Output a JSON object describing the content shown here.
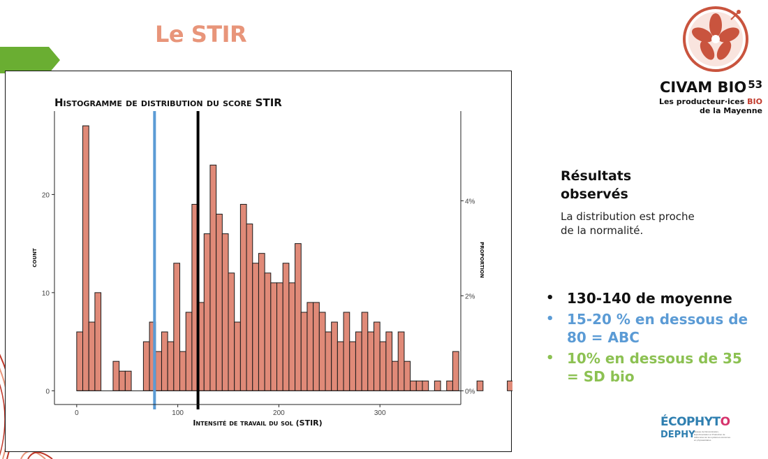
{
  "slide": {
    "title": "Le STIR",
    "colors": {
      "title": "#e8957a",
      "accent_green": "#6aae32",
      "accent_blue": "#5b9bd5",
      "accent_light_green": "#8cc152"
    }
  },
  "logo": {
    "name": "CIVAM BIO",
    "number": "53",
    "tagline_part1": "Les producteur·ices",
    "tagline_bio": "BIO",
    "tagline_part2": "de la Mayenne",
    "icon": "flower-icon"
  },
  "results": {
    "heading": "Résultats observés",
    "text": "La distribution est proche de la normalité.",
    "bullets": [
      {
        "text": "130-140 de moyenne",
        "color": "#111111"
      },
      {
        "text": "15-20 % en dessous de 80 = ABC",
        "color": "#5b9bd5"
      },
      {
        "text": "10% en dessous de 35 = SD bio",
        "color": "#8cc152"
      }
    ]
  },
  "partner": {
    "name": "ÉCOPHYT",
    "name_last": "O",
    "sub": "DEPHY",
    "desc": "Réseau de Démonstration, Expérimentation et Production de références sur les systèmes économes en phytosanitaires"
  },
  "chart_data": {
    "type": "bar",
    "title": "Histogramme de distribution du score STIR",
    "xlabel": "Intensité de travail du sol (STIR)",
    "ylabel": "count",
    "y2label": "proportion",
    "x_bins_start": 0,
    "bin_width": 6,
    "xlim": [
      -22,
      380
    ],
    "ylim": [
      -1.4,
      28.5
    ],
    "x_ticks": [
      0,
      100,
      200,
      300
    ],
    "y_ticks": [
      0,
      10,
      20
    ],
    "y2_ticks": [
      "0%",
      "2%",
      "4%"
    ],
    "y2_tick_counts": [
      0,
      9.68,
      19.36
    ],
    "grid": false,
    "bar_color": "#e08a78",
    "counts": [
      6,
      27,
      7,
      10,
      0,
      0,
      3,
      2,
      2,
      0,
      0,
      5,
      7,
      4,
      6,
      5,
      13,
      4,
      8,
      19,
      9,
      16,
      23,
      18,
      16,
      12,
      7,
      19,
      17,
      13,
      14,
      12,
      11,
      11,
      13,
      11,
      15,
      8,
      9,
      9,
      8,
      6,
      7,
      5,
      8,
      5,
      6,
      8,
      6,
      7,
      5,
      6,
      3,
      6,
      3,
      1,
      1,
      1,
      0,
      1,
      0,
      1,
      4,
      0,
      0,
      0,
      1,
      0,
      0,
      0,
      0,
      1,
      1,
      0,
      0,
      0,
      0,
      0,
      0,
      0,
      0,
      0,
      1,
      0,
      1,
      0,
      0,
      0,
      0,
      0
    ],
    "vlines": [
      {
        "x": 77,
        "color": "#5b9bd5"
      },
      {
        "x": 120,
        "color": "#000000"
      }
    ]
  }
}
